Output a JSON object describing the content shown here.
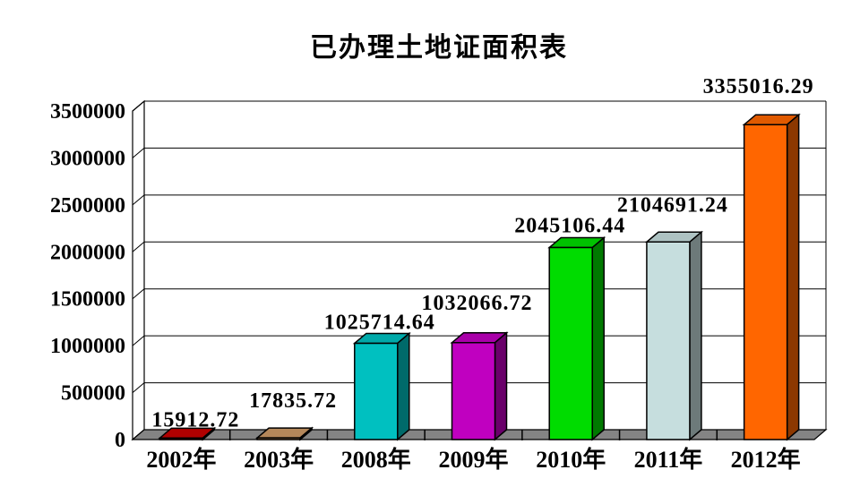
{
  "title": "已办理土地证面积表",
  "chart_data": {
    "type": "bar",
    "projection": "3d",
    "title": "已办理土地证面积表",
    "categories": [
      "2002年",
      "2003年",
      "2008年",
      "2009年",
      "2010年",
      "2011年",
      "2012年"
    ],
    "values": [
      15912.72,
      17835.72,
      1025714.64,
      1032066.72,
      2045106.44,
      2104691.24,
      3355016.29
    ],
    "value_labels": [
      "15912.72",
      "17835.72",
      "1025714.64",
      "1032066.72",
      "2045106.44",
      "2104691.24",
      "3355016.29"
    ],
    "bar_colors": [
      "#c80000",
      "#cc9966",
      "#00c0c0",
      "#c000c0",
      "#00dc00",
      "#c6dede",
      "#ff6600"
    ],
    "y_tick_labels": [
      "0",
      "500000",
      "1000000",
      "1500000",
      "2000000",
      "2500000",
      "3000000",
      "3500000"
    ],
    "y_ticks": [
      0,
      500000,
      1000000,
      1500000,
      2000000,
      2500000,
      3000000,
      3500000
    ],
    "ylim": [
      0,
      3500000
    ],
    "xlabel": "",
    "ylabel": "",
    "grid": true,
    "legend": "none",
    "text_color": "#000000",
    "floor_color": "#848484",
    "wall_color": "#ffffff",
    "outline_color": "#000000"
  }
}
